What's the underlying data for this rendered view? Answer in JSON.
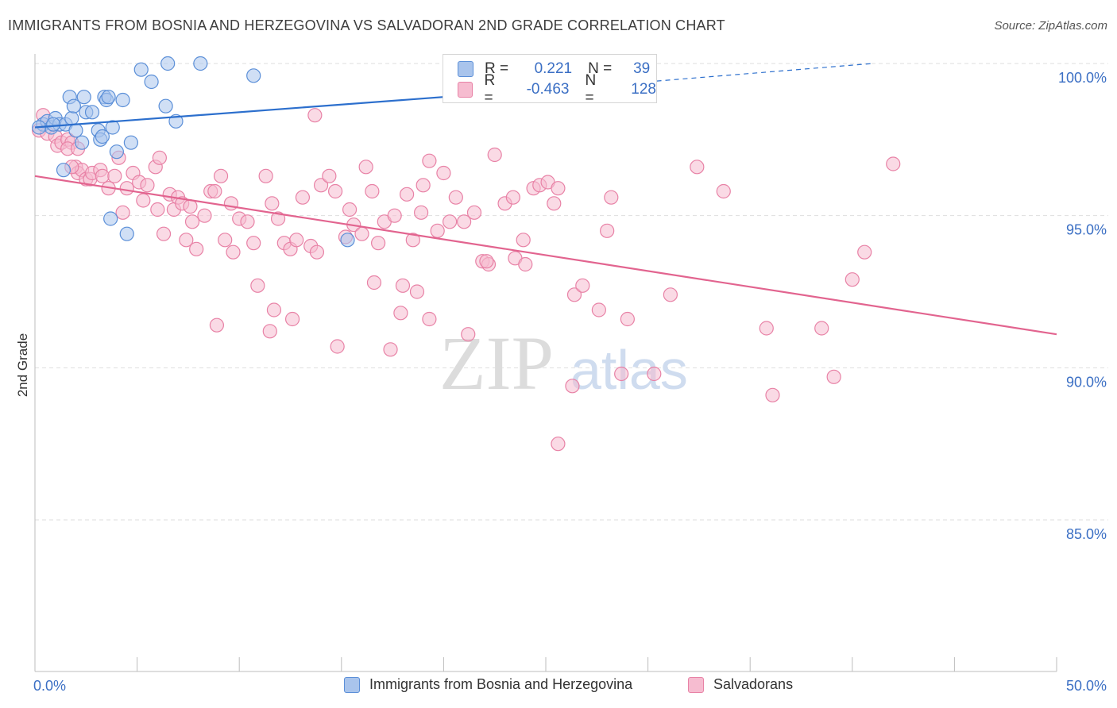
{
  "title": "IMMIGRANTS FROM BOSNIA AND HERZEGOVINA VS SALVADORAN 2ND GRADE CORRELATION CHART",
  "source": "Source: ZipAtlas.com",
  "watermark": {
    "zip": "ZIP",
    "atlas": "atlas"
  },
  "colors": {
    "blue_fill": "#a9c4ec",
    "blue_stroke": "#5b8fd8",
    "blue_line": "#2c6fcd",
    "pink_fill": "#f6bcd0",
    "pink_stroke": "#e882a6",
    "pink_line": "#e2648f",
    "axis_label": "#3b6fc4",
    "grid": "#dedede"
  },
  "stats": {
    "r_label": "R =",
    "n_label": "N =",
    "blue": {
      "r": "0.221",
      "n": "39"
    },
    "pink": {
      "r": "-0.463",
      "n": "128"
    }
  },
  "legend": {
    "blue": "Immigrants from Bosnia and Herzegovina",
    "pink": "Salvadorans"
  },
  "chart_data": {
    "type": "scatter",
    "title": "IMMIGRANTS FROM BOSNIA AND HERZEGOVINA VS SALVADORAN 2ND GRADE CORRELATION CHART",
    "xlabel": "",
    "ylabel": "2nd Grade",
    "xlim": [
      0,
      50
    ],
    "ylim": [
      80.5,
      100.9
    ],
    "x_tick_labels": [
      "0.0%",
      "50.0%"
    ],
    "y_ticks": [
      100,
      95,
      90,
      85
    ],
    "y_tick_labels": [
      "100.0%",
      "95.0%",
      "90.0%",
      "85.0%"
    ],
    "grid": true,
    "series": [
      {
        "name": "Immigrants from Bosnia and Herzegovina",
        "color": "blue",
        "trend": {
          "x": [
            0,
            30
          ],
          "y": [
            97.9,
            99.4
          ],
          "dashed_to": [
            41,
            100
          ]
        },
        "points": [
          [
            0.4,
            98.0
          ],
          [
            0.6,
            98.1
          ],
          [
            0.8,
            97.9
          ],
          [
            1.0,
            98.2
          ],
          [
            1.2,
            98.0
          ],
          [
            1.5,
            98.0
          ],
          [
            2.0,
            97.8
          ],
          [
            1.8,
            98.2
          ],
          [
            1.4,
            96.5
          ],
          [
            1.7,
            98.9
          ],
          [
            1.9,
            98.6
          ],
          [
            2.3,
            97.4
          ],
          [
            2.4,
            98.9
          ],
          [
            2.5,
            98.4
          ],
          [
            2.8,
            98.4
          ],
          [
            3.1,
            97.8
          ],
          [
            3.2,
            97.5
          ],
          [
            3.3,
            97.6
          ],
          [
            3.4,
            98.9
          ],
          [
            3.5,
            98.8
          ],
          [
            3.6,
            98.9
          ],
          [
            3.8,
            97.9
          ],
          [
            4.0,
            97.1
          ],
          [
            4.3,
            98.8
          ],
          [
            4.5,
            94.4
          ],
          [
            4.7,
            97.4
          ],
          [
            5.2,
            99.8
          ],
          [
            5.7,
            99.4
          ],
          [
            6.4,
            98.6
          ],
          [
            6.9,
            98.1
          ],
          [
            6.5,
            100.0
          ],
          [
            8.1,
            100.0
          ],
          [
            10.7,
            99.6
          ],
          [
            3.7,
            94.9
          ],
          [
            15.3,
            94.2
          ],
          [
            20.5,
            100.0
          ],
          [
            29.7,
            100.0
          ],
          [
            0.2,
            97.9
          ],
          [
            0.9,
            98.0
          ]
        ]
      },
      {
        "name": "Salvadorans",
        "color": "pink",
        "trend": {
          "x": [
            0,
            50
          ],
          "y": [
            96.3,
            91.1
          ]
        },
        "points": [
          [
            0.2,
            97.8
          ],
          [
            0.6,
            97.7
          ],
          [
            1.0,
            97.6
          ],
          [
            1.1,
            97.3
          ],
          [
            1.3,
            97.4
          ],
          [
            1.6,
            97.5
          ],
          [
            1.8,
            97.4
          ],
          [
            1.6,
            97.2
          ],
          [
            2.0,
            96.6
          ],
          [
            2.1,
            96.4
          ],
          [
            2.3,
            96.5
          ],
          [
            2.5,
            96.2
          ],
          [
            2.7,
            96.2
          ],
          [
            2.8,
            96.4
          ],
          [
            3.2,
            96.5
          ],
          [
            3.3,
            96.3
          ],
          [
            3.6,
            95.9
          ],
          [
            3.9,
            96.3
          ],
          [
            4.1,
            96.9
          ],
          [
            4.5,
            95.9
          ],
          [
            4.3,
            95.1
          ],
          [
            4.8,
            96.4
          ],
          [
            5.1,
            96.1
          ],
          [
            5.3,
            95.5
          ],
          [
            5.5,
            96.0
          ],
          [
            5.9,
            96.6
          ],
          [
            6.0,
            95.2
          ],
          [
            6.1,
            96.9
          ],
          [
            6.3,
            94.4
          ],
          [
            6.6,
            95.7
          ],
          [
            6.8,
            95.2
          ],
          [
            7.0,
            95.6
          ],
          [
            7.2,
            95.4
          ],
          [
            7.4,
            94.2
          ],
          [
            7.6,
            95.3
          ],
          [
            7.7,
            94.8
          ],
          [
            7.9,
            93.9
          ],
          [
            8.3,
            95.0
          ],
          [
            8.6,
            95.8
          ],
          [
            8.8,
            95.8
          ],
          [
            9.1,
            96.3
          ],
          [
            9.3,
            94.2
          ],
          [
            9.6,
            95.4
          ],
          [
            9.7,
            93.8
          ],
          [
            10.0,
            94.9
          ],
          [
            10.4,
            94.8
          ],
          [
            10.7,
            94.1
          ],
          [
            11.3,
            96.3
          ],
          [
            11.6,
            95.4
          ],
          [
            11.9,
            94.9
          ],
          [
            12.2,
            94.1
          ],
          [
            12.5,
            93.9
          ],
          [
            12.8,
            94.2
          ],
          [
            13.1,
            95.6
          ],
          [
            13.5,
            94.0
          ],
          [
            13.8,
            93.8
          ],
          [
            14.0,
            96.0
          ],
          [
            14.4,
            96.3
          ],
          [
            14.7,
            95.8
          ],
          [
            15.2,
            94.3
          ],
          [
            15.4,
            95.2
          ],
          [
            15.6,
            94.7
          ],
          [
            16.0,
            94.4
          ],
          [
            16.2,
            96.6
          ],
          [
            16.5,
            95.8
          ],
          [
            16.8,
            94.1
          ],
          [
            17.1,
            94.8
          ],
          [
            17.6,
            95.0
          ],
          [
            18.2,
            95.7
          ],
          [
            18.5,
            94.2
          ],
          [
            18.9,
            95.1
          ],
          [
            19.0,
            96.0
          ],
          [
            19.3,
            96.8
          ],
          [
            19.7,
            94.5
          ],
          [
            20.0,
            96.4
          ],
          [
            20.3,
            94.8
          ],
          [
            20.6,
            95.6
          ],
          [
            21.0,
            94.8
          ],
          [
            21.5,
            95.1
          ],
          [
            21.9,
            93.5
          ],
          [
            22.2,
            93.4
          ],
          [
            22.5,
            97.0
          ],
          [
            23.0,
            95.4
          ],
          [
            23.4,
            95.6
          ],
          [
            23.9,
            94.2
          ],
          [
            24.4,
            95.9
          ],
          [
            24.7,
            96.0
          ],
          [
            25.1,
            96.1
          ],
          [
            25.4,
            95.4
          ],
          [
            25.6,
            95.9
          ],
          [
            26.4,
            92.4
          ],
          [
            26.8,
            92.7
          ],
          [
            27.6,
            91.9
          ],
          [
            28.0,
            94.5
          ],
          [
            28.2,
            95.6
          ],
          [
            28.7,
            89.8
          ],
          [
            29.0,
            91.6
          ],
          [
            30.3,
            89.8
          ],
          [
            31.1,
            92.4
          ],
          [
            32.4,
            96.6
          ],
          [
            33.7,
            95.8
          ],
          [
            35.8,
            91.3
          ],
          [
            36.1,
            89.1
          ],
          [
            38.5,
            91.3
          ],
          [
            39.1,
            89.7
          ],
          [
            40.0,
            92.9
          ],
          [
            40.6,
            93.8
          ],
          [
            42.0,
            96.7
          ],
          [
            13.7,
            98.3
          ],
          [
            1.8,
            96.6
          ],
          [
            2.1,
            97.2
          ],
          [
            23.5,
            93.6
          ],
          [
            26.3,
            89.4
          ],
          [
            25.6,
            87.5
          ],
          [
            24.0,
            93.4
          ],
          [
            22.1,
            93.5
          ],
          [
            18.7,
            92.5
          ],
          [
            18.0,
            92.7
          ],
          [
            17.4,
            90.6
          ],
          [
            16.6,
            92.8
          ],
          [
            14.8,
            90.7
          ],
          [
            12.6,
            91.6
          ],
          [
            11.7,
            91.9
          ],
          [
            11.5,
            91.2
          ],
          [
            10.9,
            92.7
          ],
          [
            8.9,
            91.4
          ],
          [
            17.9,
            91.8
          ],
          [
            19.3,
            91.6
          ],
          [
            21.2,
            91.1
          ],
          [
            0.4,
            98.3
          ]
        ]
      }
    ]
  }
}
